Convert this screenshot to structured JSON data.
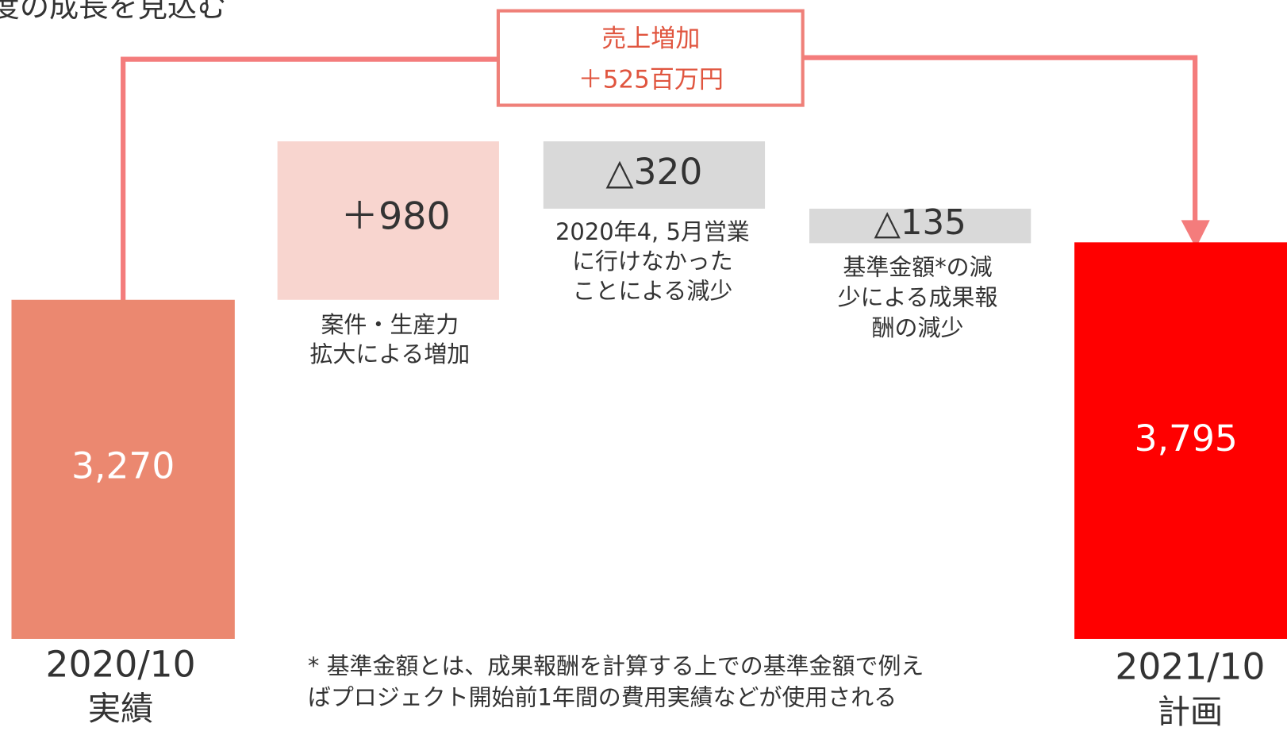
{
  "title": "度の成長を見込む",
  "callout": {
    "line1": "売上増加",
    "line2": "＋525百万円"
  },
  "start": {
    "value": "3,270",
    "period": "2020/10",
    "sub": "実績"
  },
  "steps": [
    {
      "value": "＋980",
      "desc": [
        "案件・生産力",
        "拡大による増加"
      ]
    },
    {
      "value": "△320",
      "desc": [
        "2020年4, 5月営業",
        "に行けなかった",
        "ことによる減少"
      ]
    },
    {
      "value": "△135",
      "desc": [
        "基準金額*の減",
        "少による成果報",
        "酬の減少"
      ]
    }
  ],
  "end": {
    "value": "3,795",
    "period": "2021/10",
    "sub": "計画"
  },
  "footnote": [
    "* 基準金額とは、成果報酬を計算する上での基準金額で例え",
    "ばプロジェクト開始前1年間の費用実績などが使用される"
  ]
}
